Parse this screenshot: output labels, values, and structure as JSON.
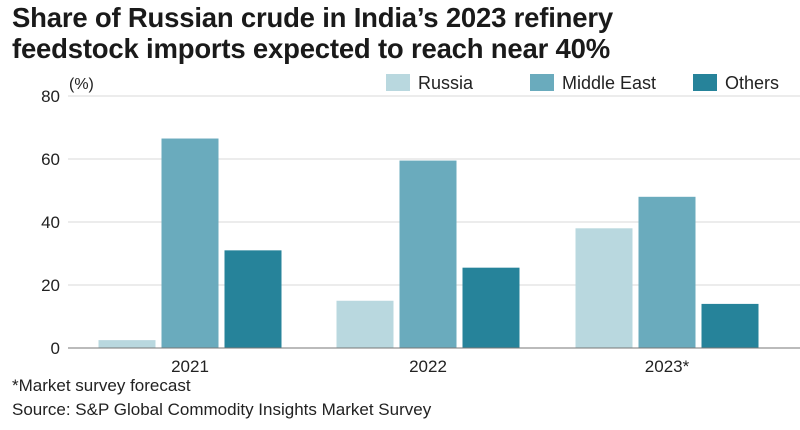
{
  "title_lines": [
    "Share of Russian crude in India’s 2023 refinery",
    "feedstock imports expected to reach near 40%"
  ],
  "footnotes": {
    "note": "*Market survey forecast",
    "source": "Source: S&P Global Commodity Insights Market Survey"
  },
  "chart_data": {
    "type": "bar",
    "title": "Share of Russian crude in India’s 2023 refinery feedstock imports expected to reach near 40%",
    "ylabel": "(%)",
    "xlabel": "",
    "categories": [
      "2021",
      "2022",
      "2023*"
    ],
    "series": [
      {
        "name": "Russia",
        "color": "#b9d8df",
        "values": [
          2.5,
          15,
          38
        ]
      },
      {
        "name": "Middle East",
        "color": "#6aabbd",
        "values": [
          66.5,
          59.5,
          48
        ]
      },
      {
        "name": "Others",
        "color": "#26839a",
        "values": [
          31,
          25.5,
          14
        ]
      }
    ],
    "ylim": [
      0,
      80
    ],
    "yticks": [
      "0",
      "20",
      "40",
      "60",
      "80"
    ],
    "grid": true,
    "legend_position": "top-right"
  }
}
